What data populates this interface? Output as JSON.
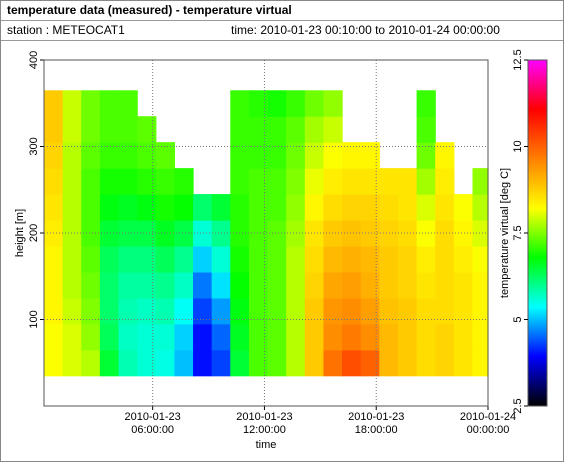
{
  "chart_data": {
    "type": "heatmap",
    "title": "temperature data (measured) - temperature virtual",
    "station": "station : METEOCAT1",
    "time_range": "time: 2010-01-23 00:10:00 to 2010-01-24 00:00:00",
    "x_label": "time",
    "y_label": "height [m]",
    "colorbar_label": "temperature virtual [deg C]",
    "xlim": [
      "2010-01-23 00:10:00",
      "2010-01-24 00:00:00"
    ],
    "xticks": [
      {
        "value": "2010-01-23 06:00:00",
        "label": "2010-01-23\n06:00:00"
      },
      {
        "value": "2010-01-23 12:00:00",
        "label": "2010-01-23\n12:00:00"
      },
      {
        "value": "2010-01-23 18:00:00",
        "label": "2010-01-23\n18:00:00"
      },
      {
        "value": "2010-01-24 00:00:00",
        "label": "2010-01-24\n00:00:00"
      }
    ],
    "ylim": [
      0,
      400
    ],
    "yticks": [
      100,
      200,
      300,
      400
    ],
    "zlim": [
      2.5,
      12.5
    ],
    "zticks": [
      2.5,
      5,
      7.5,
      10,
      12.5
    ],
    "colormap": [
      "#000000",
      "#0000ff",
      "#00ffff",
      "#00ff00",
      "#ffff00",
      "#ff8000",
      "#ff0000",
      "#ff00ff"
    ],
    "grid": true,
    "x": [
      "2010-01-23 00:10:00",
      "2010-01-23 01:10:00",
      "2010-01-23 02:10:00",
      "2010-01-23 03:10:00",
      "2010-01-23 04:10:00",
      "2010-01-23 05:10:00",
      "2010-01-23 06:10:00",
      "2010-01-23 07:10:00",
      "2010-01-23 08:10:00",
      "2010-01-23 09:10:00",
      "2010-01-23 10:10:00",
      "2010-01-23 11:10:00",
      "2010-01-23 12:10:00",
      "2010-01-23 13:10:00",
      "2010-01-23 14:10:00",
      "2010-01-23 15:10:00",
      "2010-01-23 16:10:00",
      "2010-01-23 17:10:00",
      "2010-01-23 18:10:00",
      "2010-01-23 19:10:00",
      "2010-01-23 20:10:00",
      "2010-01-23 21:10:00",
      "2010-01-23 22:10:00",
      "2010-01-23 23:10:00"
    ],
    "y": [
      50,
      80,
      110,
      140,
      170,
      200,
      230,
      260,
      290,
      320,
      350
    ],
    "z": [
      [
        8.2,
        8.0,
        7.8,
        6.5,
        5.8,
        5.6,
        5.5,
        5.0,
        4.0,
        4.3,
        6.5,
        7.2,
        7.3,
        7.8,
        8.8,
        9.8,
        10.2,
        10.0,
        9.0,
        8.8,
        8.6,
        8.7,
        8.5,
        8.3
      ],
      [
        8.2,
        8.0,
        7.6,
        6.3,
        5.7,
        5.6,
        5.6,
        5.1,
        4.0,
        4.5,
        6.6,
        7.2,
        7.3,
        7.8,
        8.8,
        9.5,
        9.7,
        9.5,
        9.0,
        8.8,
        8.6,
        8.7,
        8.5,
        8.3
      ],
      [
        8.3,
        7.9,
        7.5,
        6.2,
        5.8,
        5.7,
        5.8,
        5.4,
        4.3,
        4.8,
        6.7,
        7.2,
        7.3,
        7.8,
        8.8,
        9.4,
        9.5,
        9.3,
        8.9,
        8.8,
        8.6,
        8.6,
        8.5,
        8.3
      ],
      [
        8.3,
        7.8,
        7.4,
        6.2,
        5.9,
        5.9,
        6.0,
        5.7,
        4.6,
        5.2,
        6.8,
        7.2,
        7.3,
        7.8,
        8.7,
        9.2,
        9.3,
        9.1,
        8.8,
        8.7,
        8.5,
        8.6,
        8.5,
        8.3
      ],
      [
        8.3,
        7.8,
        7.3,
        6.3,
        6.1,
        6.1,
        6.3,
        6.0,
        5.1,
        5.6,
        6.9,
        7.2,
        7.3,
        7.8,
        8.6,
        9.0,
        9.1,
        9.0,
        8.8,
        8.7,
        8.4,
        8.6,
        8.4,
        8.2
      ],
      [
        8.4,
        7.8,
        7.2,
        6.5,
        6.4,
        6.4,
        6.6,
        6.4,
        5.6,
        6.0,
        7.0,
        7.2,
        7.3,
        7.7,
        8.5,
        8.8,
        8.9,
        8.8,
        8.7,
        8.6,
        8.2,
        8.6,
        8.3,
        8.0
      ],
      [
        8.5,
        7.8,
        7.2,
        6.7,
        6.6,
        6.7,
        6.9,
        6.8,
        6.2,
        6.5,
        7.0,
        7.2,
        7.2,
        7.6,
        8.3,
        8.6,
        8.7,
        8.7,
        8.6,
        8.5,
        8.0,
        8.5,
        8.2,
        7.8
      ],
      [
        8.6,
        7.8,
        7.2,
        6.9,
        6.9,
        7.0,
        7.1,
        7.0,
        null,
        null,
        7.1,
        7.2,
        7.2,
        7.5,
        8.1,
        8.4,
        8.5,
        8.5,
        8.5,
        8.5,
        7.7,
        8.4,
        null,
        7.6
      ],
      [
        8.7,
        7.8,
        7.3,
        7.1,
        7.1,
        7.2,
        7.3,
        null,
        null,
        null,
        7.1,
        7.1,
        7.1,
        7.4,
        7.9,
        8.2,
        8.3,
        8.3,
        null,
        null,
        7.4,
        8.3,
        null,
        null
      ],
      [
        8.8,
        7.9,
        7.4,
        7.2,
        7.2,
        7.3,
        null,
        null,
        null,
        null,
        7.1,
        7.1,
        7.1,
        7.3,
        7.7,
        7.9,
        null,
        null,
        null,
        null,
        7.2,
        null,
        null,
        null
      ],
      [
        8.8,
        7.9,
        7.4,
        7.2,
        7.2,
        null,
        null,
        null,
        null,
        null,
        7.1,
        7.0,
        6.9,
        7.1,
        7.4,
        7.6,
        null,
        null,
        null,
        null,
        7.1,
        null,
        null,
        null
      ]
    ]
  }
}
